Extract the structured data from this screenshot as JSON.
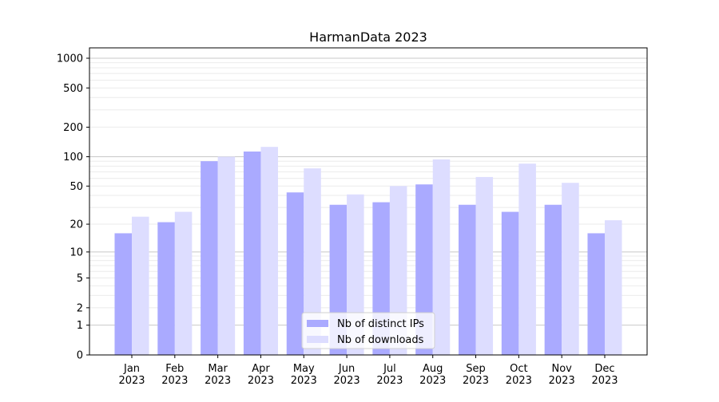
{
  "chart_data": {
    "type": "bar",
    "title": "HarmanData 2023",
    "xlabel": "",
    "ylabel": "",
    "yscale": "log(y+1)",
    "ylim": [
      0,
      1273
    ],
    "yticks": [
      0,
      1,
      2,
      5,
      10,
      20,
      50,
      100,
      200,
      500,
      1000
    ],
    "grid": true,
    "legend_position": "bottom-center",
    "categories": [
      "Jan\n2023",
      "Feb\n2023",
      "Mar\n2023",
      "Apr\n2023",
      "May\n2023",
      "Jun\n2023",
      "Jul\n2023",
      "Aug\n2023",
      "Sep\n2023",
      "Oct\n2023",
      "Nov\n2023",
      "Dec\n2023"
    ],
    "series": [
      {
        "name": "Nb of distinct IPs",
        "color": "#aaaaff",
        "values": [
          16,
          21,
          90,
          113,
          43,
          32,
          34,
          52,
          32,
          27,
          32,
          16
        ]
      },
      {
        "name": "Nb of downloads",
        "color": "#ddddff",
        "values": [
          24,
          27,
          100,
          126,
          76,
          41,
          50,
          94,
          62,
          85,
          54,
          22
        ]
      }
    ]
  }
}
